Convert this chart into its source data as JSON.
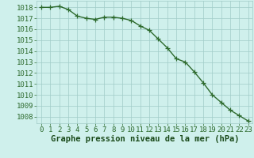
{
  "x": [
    0,
    1,
    2,
    3,
    4,
    5,
    6,
    7,
    8,
    9,
    10,
    11,
    12,
    13,
    14,
    15,
    16,
    17,
    18,
    19,
    20,
    21,
    22,
    23
  ],
  "y": [
    1018.0,
    1018.0,
    1018.1,
    1017.8,
    1017.2,
    1017.0,
    1016.9,
    1017.1,
    1017.1,
    1017.0,
    1016.8,
    1016.3,
    1015.9,
    1015.1,
    1014.3,
    1013.3,
    1013.0,
    1012.1,
    1011.1,
    1010.0,
    1009.3,
    1008.6,
    1008.1,
    1007.6
  ],
  "line_color": "#2d6a2d",
  "marker": "+",
  "bg_color": "#cff0ec",
  "grid_color": "#a0ccc8",
  "xlabel": "Graphe pression niveau de la mer (hPa)",
  "xlabel_color": "#1a4a1a",
  "tick_color": "#2d6a2d",
  "ytick_labels": [
    1008,
    1009,
    1010,
    1011,
    1012,
    1013,
    1014,
    1015,
    1016,
    1017,
    1018
  ],
  "ylim": [
    1007.4,
    1018.6
  ],
  "xlim": [
    -0.5,
    23.5
  ],
  "figsize": [
    3.2,
    2.0
  ],
  "dpi": 100,
  "line_width": 1.0,
  "marker_size": 4,
  "font_size": 6.5,
  "xlabel_fontsize": 7.5
}
